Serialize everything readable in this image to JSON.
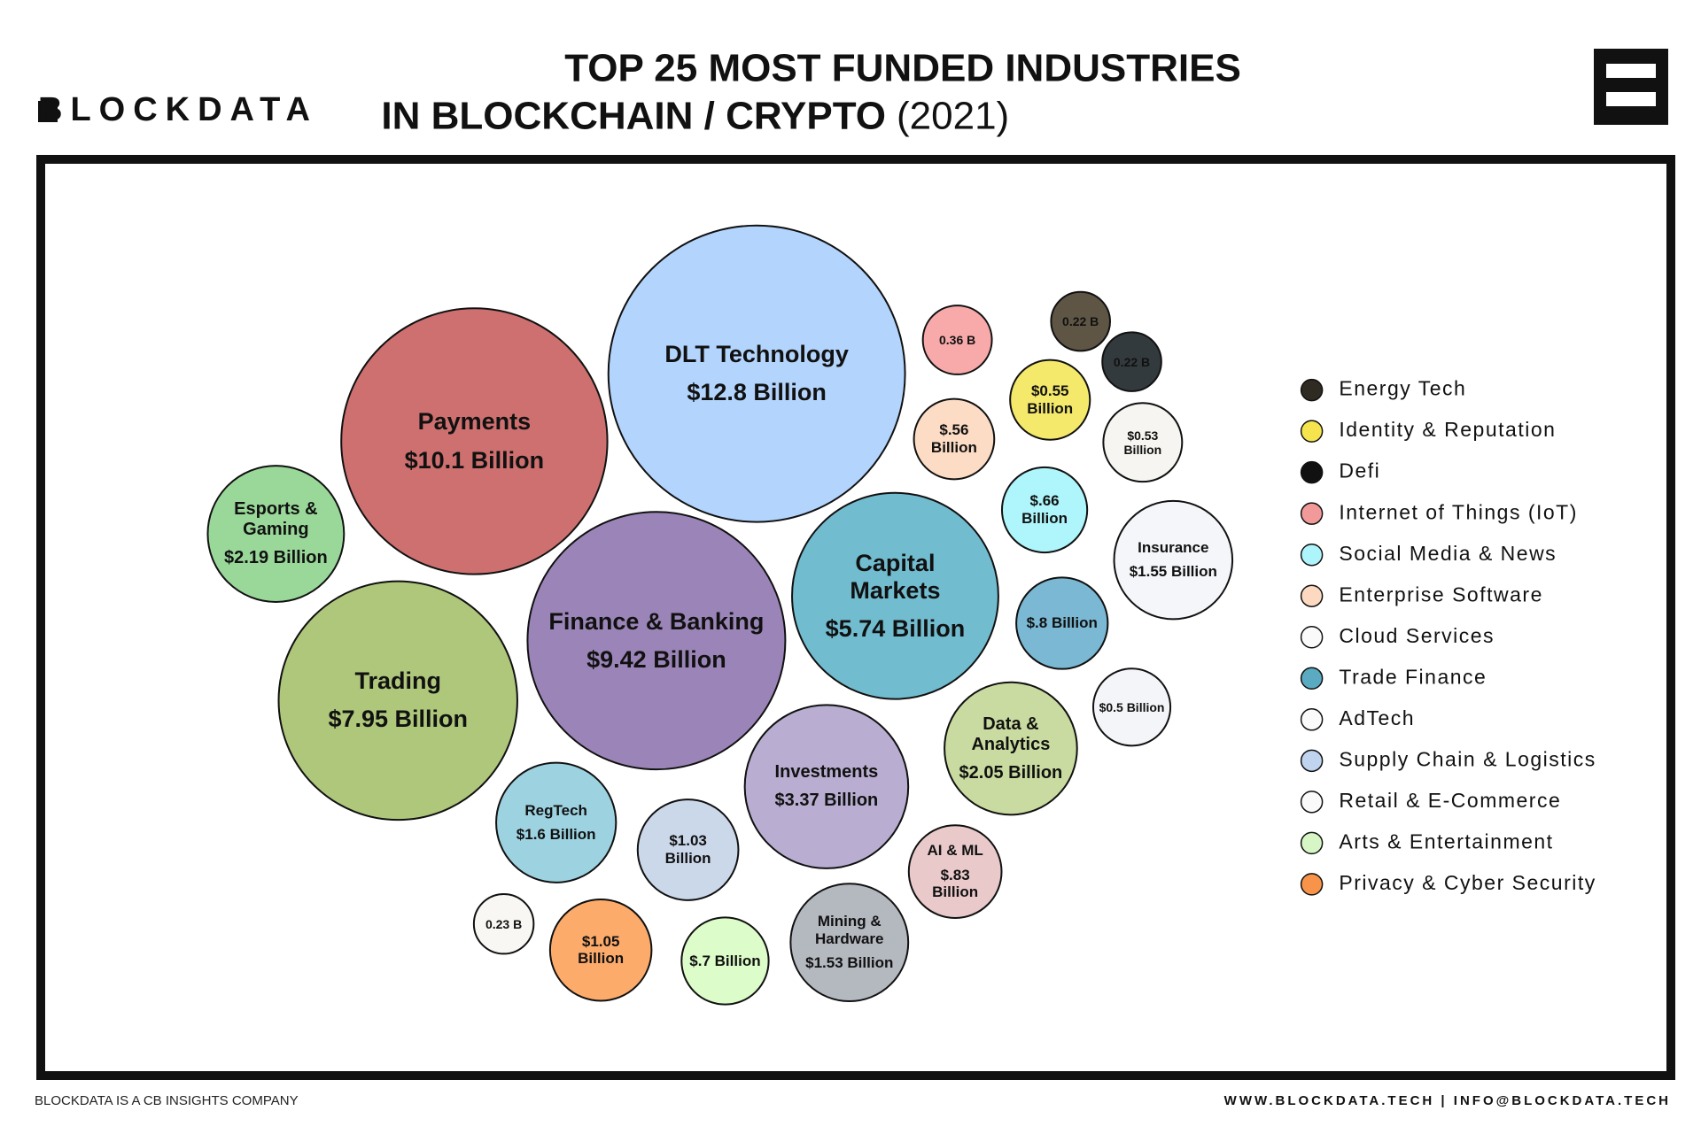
{
  "brand": "BLOCKDATA",
  "footer_left": "BLOCKDATA IS A CB INSIGHTS COMPANY",
  "footer_right": "WWW.BLOCKDATA.TECH | INFO@BLOCKDATA.TECH",
  "chart_data": {
    "type": "bubble",
    "title": "TOP 25 MOST FUNDED INDUSTRIES",
    "title_line2": "IN BLOCKCHAIN / CRYPTO",
    "title_year": "(2021)",
    "categories": [
      "DLT Technology",
      "Payments",
      "Esports & Gaming",
      "Trading",
      "Finance & Banking",
      "Capital Markets",
      "Investments",
      "RegTech",
      null,
      null,
      null,
      null,
      "Mining & Hardware",
      "AI & ML",
      "Data & Analytics",
      null,
      null,
      "Insurance",
      null,
      null,
      null,
      null,
      null,
      null,
      null
    ],
    "values": [
      12.8,
      10.1,
      2.19,
      7.95,
      9.42,
      5.74,
      3.37,
      1.6,
      1.03,
      0.23,
      1.05,
      0.7,
      1.53,
      0.83,
      2.05,
      0.5,
      0.8,
      1.55,
      0.66,
      0.56,
      0.36,
      0.55,
      0.53,
      0.22,
      0.22
    ],
    "value_labels": [
      "$12.8 Billion",
      "$10.1 Billion",
      "$2.19 Billion",
      "$7.95 Billion",
      "$9.42 Billion",
      "$5.74 Billion",
      "$3.37 Billion",
      "$1.6 Billion",
      "$1.03 Billion",
      "0.23 B",
      "$1.05 Billion",
      "$.7 Billion",
      "$1.53 Billion",
      "$.83 Billion",
      "$2.05 Billion",
      "$0.5 Billion",
      "$.8 Billion",
      "$1.55 Billion",
      "$.66 Billion",
      "$.56 Billion",
      "0.36 B",
      "$0.55 Billion",
      "$0.53 Billion",
      "0.22 B",
      "0.22 B"
    ],
    "colors": [
      "#b3d4fc",
      "#cd706f",
      "#9ad89a",
      "#aec77b",
      "#9b85b8",
      "#72bcd0",
      "#b9aed1",
      "#9dd2e0",
      "#cbd8ea",
      "#f8f7f3",
      "#fdab6b",
      "#dcfcc9",
      "#b4b8bf",
      "#e9c9ca",
      "#c9dba0",
      "#f4f5f8",
      "#7ab8d3",
      "#f4f6f9",
      "#aef6fb",
      "#fcdcc4",
      "#f8a9a9",
      "#f5e96b",
      "#f6f5f1",
      "#5e5545",
      "#333a3d"
    ],
    "legend": [
      {
        "name": "Energy Tech",
        "color": "#2f2a22"
      },
      {
        "name": "Identity & Reputation",
        "color": "#f5e44e"
      },
      {
        "name": "Defi",
        "color": "#111111"
      },
      {
        "name": "Internet of Things (IoT)",
        "color": "#f29a9a"
      },
      {
        "name": "Social Media & News",
        "color": "#aef4fb"
      },
      {
        "name": "Enterprise Software",
        "color": "#fcd9c0"
      },
      {
        "name": "Cloud Services",
        "color": "#fafafa"
      },
      {
        "name": "Trade Finance",
        "color": "#5aaac2"
      },
      {
        "name": "AdTech",
        "color": "#fafafa"
      },
      {
        "name": "Supply Chain & Logistics",
        "color": "#c0d4f0"
      },
      {
        "name": "Retail & E-Commerce",
        "color": "#fafafa"
      },
      {
        "name": "Arts & Entertainment",
        "color": "#d6f7c5"
      },
      {
        "name": "Privacy & Cyber Security",
        "color": "#f7944a"
      }
    ]
  }
}
